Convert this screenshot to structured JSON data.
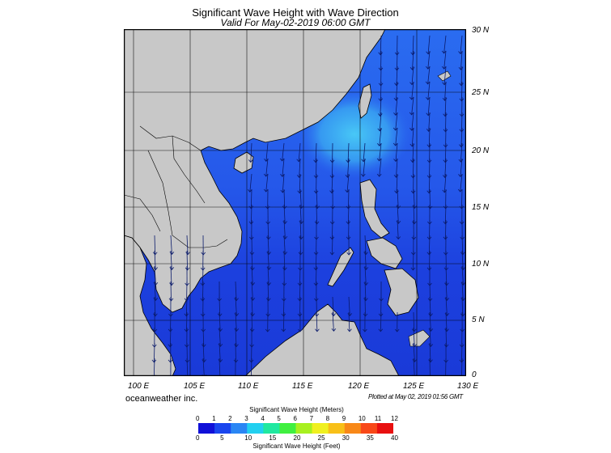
{
  "header": {
    "title": "Significant Wave Height with Wave Direction",
    "subtitle": "Valid For May-02-2019 06:00 GMT"
  },
  "map": {
    "lat_labels": [
      "30 N",
      "25 N",
      "20 N",
      "15 N",
      "10 N",
      "5 N",
      "0"
    ],
    "lon_labels": [
      "100 E",
      "105 E",
      "110 E",
      "115 E",
      "120 E",
      "125 E",
      "130 E"
    ],
    "colors": {
      "land": "#c8c8c8",
      "sea_low": "#1a3fe0",
      "sea_mid": "#2a66ee",
      "sea_high": "#3ab6f4",
      "border": "#000000"
    }
  },
  "footer": {
    "brand": "oceanweather inc.",
    "plotted": "Plotted at May 02, 2019 01:56 GMT"
  },
  "scale": {
    "title_meters": "Significant Wave Height (Meters)",
    "title_feet": "Significant Wave Height (Feet)",
    "meters": [
      "0",
      "1",
      "2",
      "3",
      "4",
      "5",
      "6",
      "7",
      "8",
      "9",
      "10",
      "11",
      "12"
    ],
    "feet": [
      "0",
      "5",
      "10",
      "15",
      "20",
      "25",
      "30",
      "35",
      "40"
    ],
    "colors": [
      "#1010d8",
      "#1a46ee",
      "#2a86f4",
      "#22d0f0",
      "#20e8a0",
      "#40f040",
      "#a8f020",
      "#f0f020",
      "#f8c018",
      "#f88818",
      "#f84818",
      "#e81010"
    ]
  }
}
